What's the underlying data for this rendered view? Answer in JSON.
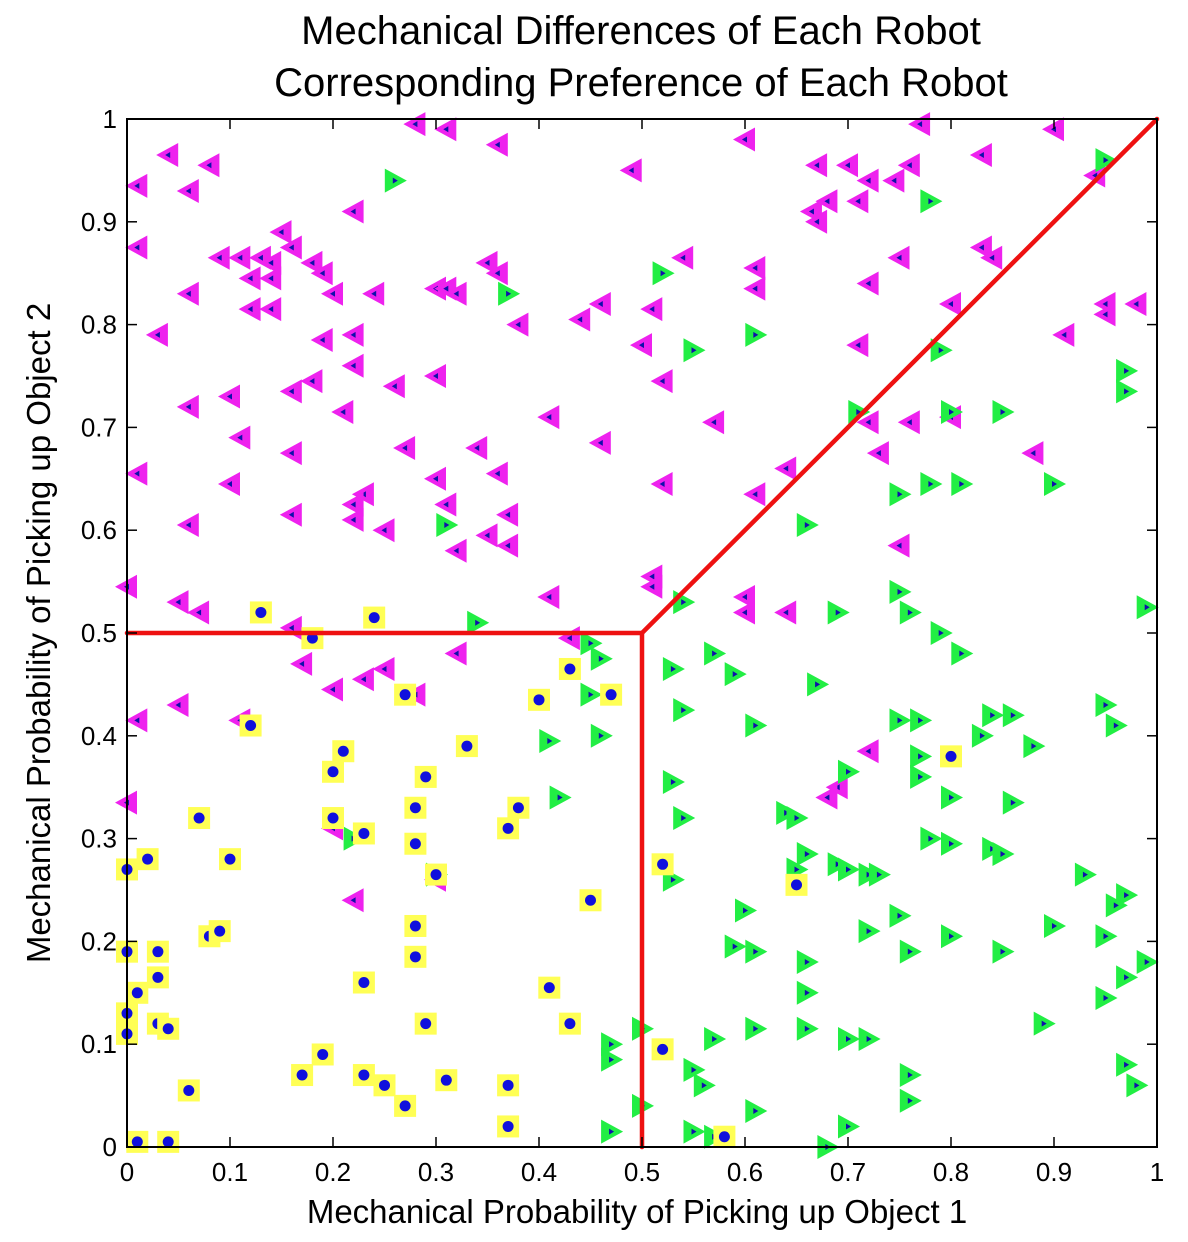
{
  "chart_data": {
    "type": "scatter",
    "title": [
      "Mechanical Differences of Each Robot",
      "Corresponding Preference of Each Robot"
    ],
    "xlabel": "Mechanical Probability of Picking up Object 1",
    "ylabel": "Mechanical Probability of Picking up Object 2",
    "xlim": [
      0,
      1
    ],
    "ylim": [
      0,
      1
    ],
    "xticks": [
      "0",
      "0.1",
      "0.2",
      "0.3",
      "0.4",
      "0.5",
      "0.6",
      "0.7",
      "0.8",
      "0.9",
      "1"
    ],
    "yticks": [
      "0",
      "0.1",
      "0.2",
      "0.3",
      "0.4",
      "0.5",
      "0.6",
      "0.7",
      "0.8",
      "0.9",
      "1"
    ],
    "grid": false,
    "colors": {
      "prefer_object2": "#ee22ee",
      "prefer_object1": "#22ee44",
      "prefer_none_fill": "#ffff55",
      "prefer_none_dot": "#1010dd",
      "inner_dot": "#1010aa",
      "boundary": "#ee1111"
    },
    "boundary_lines": [
      {
        "x": [
          0,
          0.5
        ],
        "y": [
          0.5,
          0.5
        ]
      },
      {
        "x": [
          0.5,
          0.5
        ],
        "y": [
          0,
          0.5
        ]
      },
      {
        "x": [
          0.5,
          1
        ],
        "y": [
          0.5,
          1
        ]
      }
    ],
    "series": [
      {
        "marker": "left-triangle",
        "points": [
          [
            0.77,
            0.995
          ],
          [
            0.28,
            0.995
          ],
          [
            0.31,
            0.99
          ],
          [
            0.9,
            0.99
          ],
          [
            0.6,
            0.98
          ],
          [
            0.36,
            0.975
          ],
          [
            0.04,
            0.965
          ],
          [
            0.83,
            0.965
          ],
          [
            0.67,
            0.955
          ],
          [
            0.7,
            0.955
          ],
          [
            0.76,
            0.955
          ],
          [
            0.08,
            0.955
          ],
          [
            0.49,
            0.95
          ],
          [
            0.745,
            0.94
          ],
          [
            0.72,
            0.94
          ],
          [
            0.94,
            0.945
          ],
          [
            0.01,
            0.935
          ],
          [
            0.06,
            0.93
          ],
          [
            0.68,
            0.92
          ],
          [
            0.71,
            0.92
          ],
          [
            0.22,
            0.91
          ],
          [
            0.665,
            0.91
          ],
          [
            0.67,
            0.9
          ],
          [
            0.15,
            0.89
          ],
          [
            0.01,
            0.875
          ],
          [
            0.16,
            0.875
          ],
          [
            0.09,
            0.865
          ],
          [
            0.11,
            0.865
          ],
          [
            0.13,
            0.865
          ],
          [
            0.14,
            0.86
          ],
          [
            0.18,
            0.86
          ],
          [
            0.35,
            0.86
          ],
          [
            0.54,
            0.865
          ],
          [
            0.75,
            0.865
          ],
          [
            0.83,
            0.875
          ],
          [
            0.61,
            0.855
          ],
          [
            0.84,
            0.865
          ],
          [
            0.36,
            0.85
          ],
          [
            0.19,
            0.85
          ],
          [
            0.12,
            0.845
          ],
          [
            0.14,
            0.845
          ],
          [
            0.72,
            0.84
          ],
          [
            0.06,
            0.83
          ],
          [
            0.3,
            0.835
          ],
          [
            0.31,
            0.835
          ],
          [
            0.32,
            0.83
          ],
          [
            0.61,
            0.835
          ],
          [
            0.2,
            0.83
          ],
          [
            0.24,
            0.83
          ],
          [
            0.46,
            0.82
          ],
          [
            0.51,
            0.815
          ],
          [
            0.8,
            0.82
          ],
          [
            0.95,
            0.82
          ],
          [
            0.98,
            0.82
          ],
          [
            0.12,
            0.815
          ],
          [
            0.14,
            0.815
          ],
          [
            0.95,
            0.81
          ],
          [
            0.44,
            0.805
          ],
          [
            0.03,
            0.79
          ],
          [
            0.38,
            0.8
          ],
          [
            0.22,
            0.79
          ],
          [
            0.91,
            0.79
          ],
          [
            0.19,
            0.785
          ],
          [
            0.5,
            0.78
          ],
          [
            0.71,
            0.78
          ],
          [
            0.22,
            0.76
          ],
          [
            0.3,
            0.75
          ],
          [
            0.18,
            0.745
          ],
          [
            0.52,
            0.745
          ],
          [
            0.26,
            0.74
          ],
          [
            0.16,
            0.735
          ],
          [
            0.1,
            0.73
          ],
          [
            0.06,
            0.72
          ],
          [
            0.21,
            0.715
          ],
          [
            0.41,
            0.71
          ],
          [
            0.57,
            0.705
          ],
          [
            0.8,
            0.71
          ],
          [
            0.72,
            0.705
          ],
          [
            0.76,
            0.705
          ],
          [
            0.11,
            0.69
          ],
          [
            0.46,
            0.685
          ],
          [
            0.27,
            0.68
          ],
          [
            0.34,
            0.68
          ],
          [
            0.88,
            0.675
          ],
          [
            0.16,
            0.675
          ],
          [
            0.73,
            0.675
          ],
          [
            0.64,
            0.66
          ],
          [
            0.01,
            0.655
          ],
          [
            0.36,
            0.655
          ],
          [
            0.3,
            0.65
          ],
          [
            0.1,
            0.645
          ],
          [
            0.52,
            0.645
          ],
          [
            0.61,
            0.635
          ],
          [
            0.23,
            0.635
          ],
          [
            0.31,
            0.625
          ],
          [
            0.22,
            0.625
          ],
          [
            0.37,
            0.615
          ],
          [
            0.16,
            0.615
          ],
          [
            0.22,
            0.61
          ],
          [
            0.06,
            0.605
          ],
          [
            0.25,
            0.6
          ],
          [
            0.35,
            0.595
          ],
          [
            0.37,
            0.585
          ],
          [
            0.32,
            0.58
          ],
          [
            0.75,
            0.585
          ],
          [
            0.0,
            0.545
          ],
          [
            0.51,
            0.555
          ],
          [
            0.41,
            0.535
          ],
          [
            0.05,
            0.53
          ],
          [
            0.6,
            0.535
          ],
          [
            0.51,
            0.545
          ],
          [
            0.07,
            0.52
          ],
          [
            0.6,
            0.52
          ],
          [
            0.64,
            0.52
          ],
          [
            0.16,
            0.505
          ],
          [
            0.43,
            0.495
          ],
          [
            0.32,
            0.48
          ],
          [
            0.17,
            0.47
          ],
          [
            0.25,
            0.465
          ],
          [
            0.2,
            0.445
          ],
          [
            0.23,
            0.455
          ],
          [
            0.28,
            0.44
          ],
          [
            0.05,
            0.43
          ],
          [
            0.01,
            0.415
          ],
          [
            0.11,
            0.415
          ],
          [
            0.72,
            0.385
          ],
          [
            0.69,
            0.35
          ],
          [
            0.68,
            0.34
          ],
          [
            0.0,
            0.335
          ],
          [
            0.2,
            0.31
          ],
          [
            0.22,
            0.24
          ],
          [
            0.3,
            0.26
          ]
        ]
      },
      {
        "marker": "right-triangle",
        "points": [
          [
            0.26,
            0.94
          ],
          [
            0.95,
            0.96
          ],
          [
            0.78,
            0.92
          ],
          [
            0.52,
            0.85
          ],
          [
            0.37,
            0.83
          ],
          [
            0.55,
            0.775
          ],
          [
            0.61,
            0.79
          ],
          [
            0.79,
            0.775
          ],
          [
            0.97,
            0.755
          ],
          [
            0.97,
            0.735
          ],
          [
            0.71,
            0.715
          ],
          [
            0.8,
            0.715
          ],
          [
            0.85,
            0.715
          ],
          [
            0.9,
            0.645
          ],
          [
            0.75,
            0.635
          ],
          [
            0.78,
            0.645
          ],
          [
            0.81,
            0.645
          ],
          [
            0.31,
            0.605
          ],
          [
            0.66,
            0.605
          ],
          [
            0.75,
            0.54
          ],
          [
            0.54,
            0.53
          ],
          [
            0.69,
            0.52
          ],
          [
            0.76,
            0.52
          ],
          [
            0.99,
            0.525
          ],
          [
            0.34,
            0.51
          ],
          [
            0.79,
            0.5
          ],
          [
            0.45,
            0.49
          ],
          [
            0.46,
            0.475
          ],
          [
            0.57,
            0.48
          ],
          [
            0.81,
            0.48
          ],
          [
            0.53,
            0.465
          ],
          [
            0.59,
            0.46
          ],
          [
            0.67,
            0.45
          ],
          [
            0.45,
            0.44
          ],
          [
            0.46,
            0.4
          ],
          [
            0.54,
            0.425
          ],
          [
            0.61,
            0.41
          ],
          [
            0.75,
            0.415
          ],
          [
            0.77,
            0.415
          ],
          [
            0.84,
            0.42
          ],
          [
            0.86,
            0.42
          ],
          [
            0.95,
            0.43
          ],
          [
            0.96,
            0.41
          ],
          [
            0.41,
            0.395
          ],
          [
            0.77,
            0.38
          ],
          [
            0.83,
            0.4
          ],
          [
            0.88,
            0.39
          ],
          [
            0.7,
            0.365
          ],
          [
            0.77,
            0.36
          ],
          [
            0.42,
            0.34
          ],
          [
            0.53,
            0.355
          ],
          [
            0.8,
            0.34
          ],
          [
            0.64,
            0.325
          ],
          [
            0.65,
            0.32
          ],
          [
            0.86,
            0.335
          ],
          [
            0.22,
            0.3
          ],
          [
            0.54,
            0.32
          ],
          [
            0.78,
            0.3
          ],
          [
            0.8,
            0.295
          ],
          [
            0.84,
            0.29
          ],
          [
            0.66,
            0.285
          ],
          [
            0.85,
            0.285
          ],
          [
            0.3,
            0.265
          ],
          [
            0.65,
            0.27
          ],
          [
            0.69,
            0.275
          ],
          [
            0.7,
            0.27
          ],
          [
            0.72,
            0.265
          ],
          [
            0.73,
            0.265
          ],
          [
            0.53,
            0.26
          ],
          [
            0.93,
            0.265
          ],
          [
            0.97,
            0.245
          ],
          [
            0.6,
            0.23
          ],
          [
            0.75,
            0.225
          ],
          [
            0.96,
            0.235
          ],
          [
            0.72,
            0.21
          ],
          [
            0.8,
            0.205
          ],
          [
            0.9,
            0.215
          ],
          [
            0.95,
            0.205
          ],
          [
            0.59,
            0.195
          ],
          [
            0.61,
            0.19
          ],
          [
            0.66,
            0.18
          ],
          [
            0.76,
            0.19
          ],
          [
            0.85,
            0.19
          ],
          [
            0.99,
            0.18
          ],
          [
            0.97,
            0.165
          ],
          [
            0.66,
            0.15
          ],
          [
            0.95,
            0.145
          ],
          [
            0.47,
            0.1
          ],
          [
            0.5,
            0.115
          ],
          [
            0.57,
            0.105
          ],
          [
            0.61,
            0.115
          ],
          [
            0.66,
            0.115
          ],
          [
            0.7,
            0.105
          ],
          [
            0.72,
            0.105
          ],
          [
            0.89,
            0.12
          ],
          [
            0.47,
            0.085
          ],
          [
            0.55,
            0.075
          ],
          [
            0.56,
            0.06
          ],
          [
            0.76,
            0.07
          ],
          [
            0.97,
            0.08
          ],
          [
            0.98,
            0.06
          ],
          [
            0.5,
            0.04
          ],
          [
            0.61,
            0.035
          ],
          [
            0.76,
            0.045
          ],
          [
            0.47,
            0.015
          ],
          [
            0.55,
            0.015
          ],
          [
            0.57,
            0.01
          ],
          [
            0.7,
            0.02
          ],
          [
            0.68,
            0.0
          ]
        ]
      },
      {
        "marker": "square-with-dot",
        "points": [
          [
            0.13,
            0.52
          ],
          [
            0.24,
            0.515
          ],
          [
            0.18,
            0.495
          ],
          [
            0.43,
            0.465
          ],
          [
            0.27,
            0.44
          ],
          [
            0.4,
            0.435
          ],
          [
            0.47,
            0.44
          ],
          [
            0.12,
            0.41
          ],
          [
            0.33,
            0.39
          ],
          [
            0.21,
            0.385
          ],
          [
            0.2,
            0.365
          ],
          [
            0.29,
            0.36
          ],
          [
            0.28,
            0.33
          ],
          [
            0.38,
            0.33
          ],
          [
            0.07,
            0.32
          ],
          [
            0.2,
            0.32
          ],
          [
            0.23,
            0.305
          ],
          [
            0.37,
            0.31
          ],
          [
            0.28,
            0.295
          ],
          [
            0.02,
            0.28
          ],
          [
            0.1,
            0.28
          ],
          [
            0.0,
            0.27
          ],
          [
            0.3,
            0.265
          ],
          [
            0.52,
            0.275
          ],
          [
            0.65,
            0.255
          ],
          [
            0.45,
            0.24
          ],
          [
            0.28,
            0.215
          ],
          [
            0.08,
            0.205
          ],
          [
            0.09,
            0.21
          ],
          [
            0.0,
            0.19
          ],
          [
            0.03,
            0.19
          ],
          [
            0.28,
            0.185
          ],
          [
            0.03,
            0.165
          ],
          [
            0.23,
            0.16
          ],
          [
            0.41,
            0.155
          ],
          [
            0.01,
            0.15
          ],
          [
            0.0,
            0.13
          ],
          [
            0.03,
            0.12
          ],
          [
            0.04,
            0.115
          ],
          [
            0.29,
            0.12
          ],
          [
            0.43,
            0.12
          ],
          [
            0.0,
            0.11
          ],
          [
            0.52,
            0.095
          ],
          [
            0.19,
            0.09
          ],
          [
            0.23,
            0.07
          ],
          [
            0.17,
            0.07
          ],
          [
            0.31,
            0.065
          ],
          [
            0.25,
            0.06
          ],
          [
            0.37,
            0.06
          ],
          [
            0.06,
            0.055
          ],
          [
            0.27,
            0.04
          ],
          [
            0.37,
            0.02
          ],
          [
            0.01,
            0.005
          ],
          [
            0.04,
            0.005
          ],
          [
            0.58,
            0.01
          ],
          [
            0.8,
            0.38
          ]
        ]
      }
    ]
  }
}
